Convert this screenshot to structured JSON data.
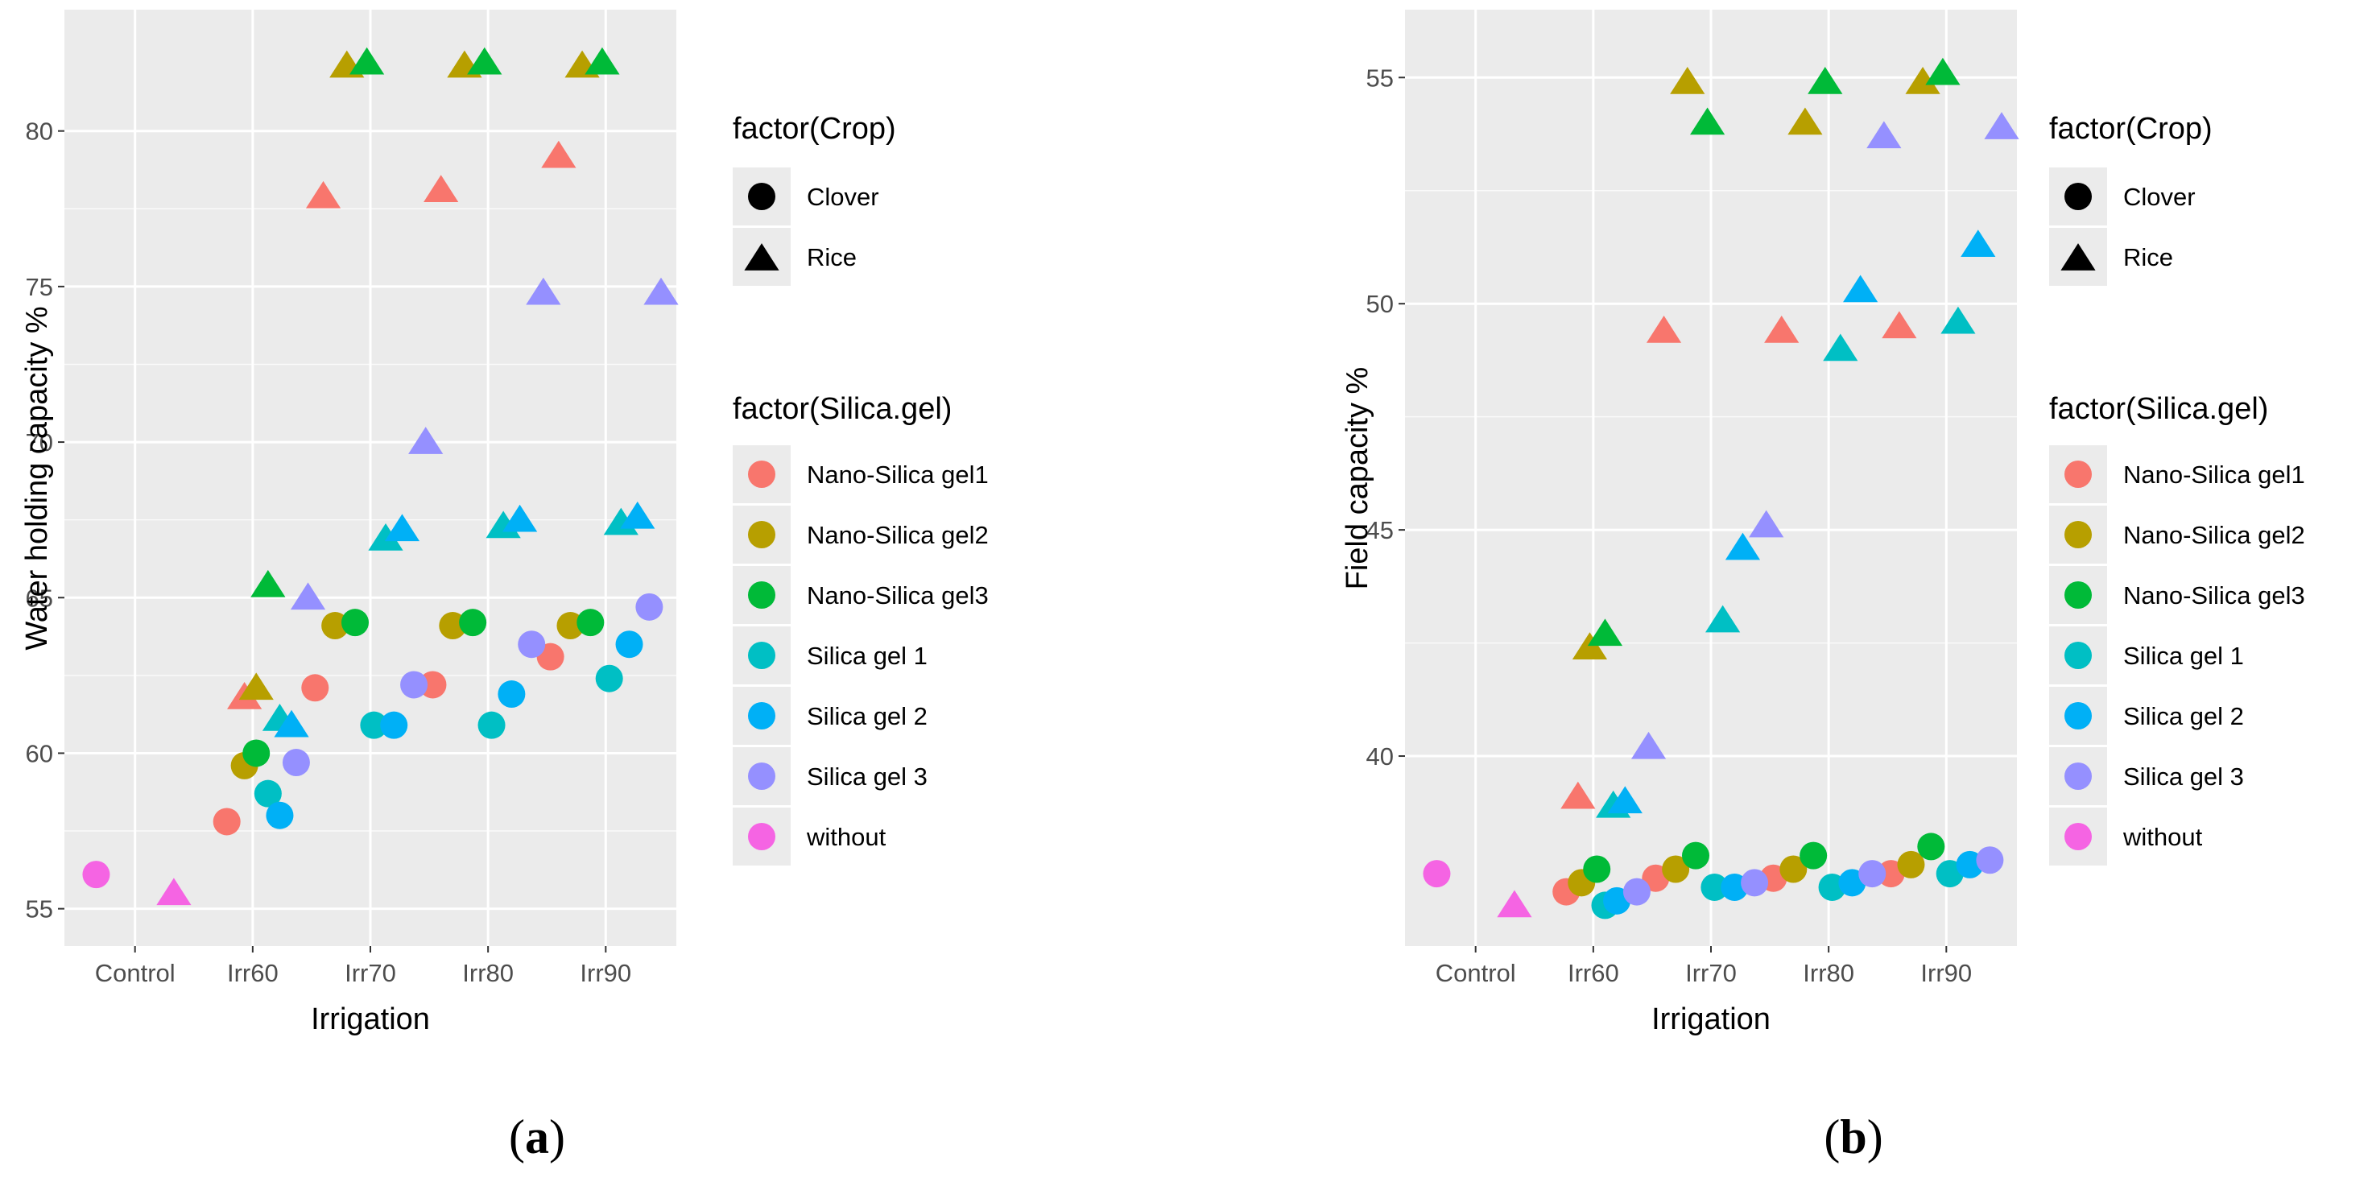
{
  "chart_data": [
    {
      "id": "a",
      "type": "scatter",
      "caption_pre": "(",
      "caption_letter": "a",
      "caption_post": ")",
      "xlabel": "Irrigation",
      "ylabel": "Water holding capacity %",
      "x_ticks": [
        "Control",
        "Irr60",
        "Irr70",
        "Irr80",
        "Irr90"
      ],
      "x_range": [
        0.4,
        5.6
      ],
      "ylim": [
        53.8,
        83.9
      ],
      "y_ticks": [
        55,
        60,
        65,
        70,
        75,
        80
      ],
      "shape_legend_title": "factor(Crop)",
      "shapes": [
        {
          "name": "Clover",
          "shape": "circle"
        },
        {
          "name": "Rice",
          "shape": "triangle"
        }
      ],
      "color_legend_title": "factor(Silica.gel)",
      "series": [
        {
          "name": "Nano-Silica gel1",
          "color": "#F8766D",
          "points": [
            {
              "x": 1.78,
              "y": 57.8,
              "crop": "Clover"
            },
            {
              "x": 1.93,
              "y": 61.8,
              "crop": "Rice"
            },
            {
              "x": 2.53,
              "y": 62.1,
              "crop": "Clover"
            },
            {
              "x": 2.6,
              "y": 77.9,
              "crop": "Rice"
            },
            {
              "x": 3.53,
              "y": 62.2,
              "crop": "Clover"
            },
            {
              "x": 3.6,
              "y": 78.1,
              "crop": "Rice"
            },
            {
              "x": 4.53,
              "y": 63.1,
              "crop": "Clover"
            },
            {
              "x": 4.6,
              "y": 79.2,
              "crop": "Rice"
            }
          ]
        },
        {
          "name": "Nano-Silica gel2",
          "color": "#B79F00",
          "points": [
            {
              "x": 1.93,
              "y": 59.6,
              "crop": "Clover"
            },
            {
              "x": 2.03,
              "y": 62.1,
              "crop": "Rice"
            },
            {
              "x": 2.7,
              "y": 64.1,
              "crop": "Clover"
            },
            {
              "x": 2.8,
              "y": 82.1,
              "crop": "Rice"
            },
            {
              "x": 3.7,
              "y": 64.1,
              "crop": "Clover"
            },
            {
              "x": 3.8,
              "y": 82.1,
              "crop": "Rice"
            },
            {
              "x": 4.7,
              "y": 64.1,
              "crop": "Clover"
            },
            {
              "x": 4.8,
              "y": 82.1,
              "crop": "Rice"
            }
          ]
        },
        {
          "name": "Nano-Silica gel3",
          "color": "#00BA38",
          "points": [
            {
              "x": 2.03,
              "y": 60.0,
              "crop": "Clover"
            },
            {
              "x": 2.13,
              "y": 65.4,
              "crop": "Rice"
            },
            {
              "x": 2.87,
              "y": 64.2,
              "crop": "Clover"
            },
            {
              "x": 2.97,
              "y": 82.2,
              "crop": "Rice"
            },
            {
              "x": 3.87,
              "y": 64.2,
              "crop": "Clover"
            },
            {
              "x": 3.97,
              "y": 82.2,
              "crop": "Rice"
            },
            {
              "x": 4.87,
              "y": 64.2,
              "crop": "Clover"
            },
            {
              "x": 4.97,
              "y": 82.2,
              "crop": "Rice"
            }
          ]
        },
        {
          "name": "Silica gel 1",
          "color": "#00BFC4",
          "points": [
            {
              "x": 2.13,
              "y": 58.7,
              "crop": "Clover"
            },
            {
              "x": 2.23,
              "y": 61.1,
              "crop": "Rice"
            },
            {
              "x": 3.03,
              "y": 60.9,
              "crop": "Clover"
            },
            {
              "x": 3.13,
              "y": 66.9,
              "crop": "Rice"
            },
            {
              "x": 4.03,
              "y": 60.9,
              "crop": "Clover"
            },
            {
              "x": 4.13,
              "y": 67.3,
              "crop": "Rice"
            },
            {
              "x": 5.03,
              "y": 62.4,
              "crop": "Clover"
            },
            {
              "x": 5.13,
              "y": 67.4,
              "crop": "Rice"
            }
          ]
        },
        {
          "name": "Silica gel 2",
          "color": "#00B0F6",
          "points": [
            {
              "x": 2.23,
              "y": 58.0,
              "crop": "Clover"
            },
            {
              "x": 2.33,
              "y": 60.9,
              "crop": "Rice"
            },
            {
              "x": 3.2,
              "y": 60.9,
              "crop": "Clover"
            },
            {
              "x": 3.27,
              "y": 67.2,
              "crop": "Rice"
            },
            {
              "x": 4.2,
              "y": 61.9,
              "crop": "Clover"
            },
            {
              "x": 4.27,
              "y": 67.5,
              "crop": "Rice"
            },
            {
              "x": 5.2,
              "y": 63.5,
              "crop": "Clover"
            },
            {
              "x": 5.27,
              "y": 67.6,
              "crop": "Rice"
            }
          ]
        },
        {
          "name": "Silica gel 3",
          "color": "#9590FF",
          "points": [
            {
              "x": 2.37,
              "y": 59.7,
              "crop": "Clover"
            },
            {
              "x": 2.47,
              "y": 65.0,
              "crop": "Rice"
            },
            {
              "x": 3.37,
              "y": 62.2,
              "crop": "Clover"
            },
            {
              "x": 3.47,
              "y": 70.0,
              "crop": "Rice"
            },
            {
              "x": 4.37,
              "y": 63.5,
              "crop": "Clover"
            },
            {
              "x": 4.47,
              "y": 74.8,
              "crop": "Rice"
            },
            {
              "x": 5.37,
              "y": 64.7,
              "crop": "Clover"
            },
            {
              "x": 5.47,
              "y": 74.8,
              "crop": "Rice"
            }
          ]
        },
        {
          "name": "without",
          "color": "#F564E3",
          "points": [
            {
              "x": 0.67,
              "y": 56.1,
              "crop": "Clover"
            },
            {
              "x": 1.33,
              "y": 55.5,
              "crop": "Rice"
            }
          ]
        }
      ]
    },
    {
      "id": "b",
      "type": "scatter",
      "caption_pre": "(",
      "caption_letter": "b",
      "caption_post": ")",
      "xlabel": "Irrigation",
      "ylabel": "Field capacity %",
      "x_ticks": [
        "Control",
        "Irr60",
        "Irr70",
        "Irr80",
        "Irr90"
      ],
      "x_range": [
        0.4,
        5.6
      ],
      "ylim": [
        35.8,
        56.5
      ],
      "y_ticks": [
        40,
        45,
        50,
        55
      ],
      "shape_legend_title": "factor(Crop)",
      "shapes": [
        {
          "name": "Clover",
          "shape": "circle"
        },
        {
          "name": "Rice",
          "shape": "triangle"
        }
      ],
      "color_legend_title": "factor(Silica.gel)",
      "series": [
        {
          "name": "Nano-Silica gel1",
          "color": "#F8766D",
          "points": [
            {
              "x": 1.77,
              "y": 37.0,
              "crop": "Clover"
            },
            {
              "x": 1.87,
              "y": 39.1,
              "crop": "Rice"
            },
            {
              "x": 2.53,
              "y": 37.3,
              "crop": "Clover"
            },
            {
              "x": 2.6,
              "y": 49.4,
              "crop": "Rice"
            },
            {
              "x": 3.53,
              "y": 37.3,
              "crop": "Clover"
            },
            {
              "x": 3.6,
              "y": 49.4,
              "crop": "Rice"
            },
            {
              "x": 4.53,
              "y": 37.4,
              "crop": "Clover"
            },
            {
              "x": 4.6,
              "y": 49.5,
              "crop": "Rice"
            }
          ]
        },
        {
          "name": "Nano-Silica gel2",
          "color": "#B79F00",
          "points": [
            {
              "x": 1.9,
              "y": 37.2,
              "crop": "Clover"
            },
            {
              "x": 1.97,
              "y": 42.4,
              "crop": "Rice"
            },
            {
              "x": 2.7,
              "y": 37.5,
              "crop": "Clover"
            },
            {
              "x": 2.8,
              "y": 54.9,
              "crop": "Rice"
            },
            {
              "x": 3.7,
              "y": 37.5,
              "crop": "Clover"
            },
            {
              "x": 3.8,
              "y": 54.0,
              "crop": "Rice"
            },
            {
              "x": 4.7,
              "y": 37.6,
              "crop": "Clover"
            },
            {
              "x": 4.8,
              "y": 54.9,
              "crop": "Rice"
            }
          ]
        },
        {
          "name": "Nano-Silica gel3",
          "color": "#00BA38",
          "points": [
            {
              "x": 2.03,
              "y": 37.5,
              "crop": "Clover"
            },
            {
              "x": 2.1,
              "y": 42.7,
              "crop": "Rice"
            },
            {
              "x": 2.87,
              "y": 37.8,
              "crop": "Clover"
            },
            {
              "x": 2.97,
              "y": 54.0,
              "crop": "Rice"
            },
            {
              "x": 3.87,
              "y": 37.8,
              "crop": "Clover"
            },
            {
              "x": 3.97,
              "y": 54.9,
              "crop": "Rice"
            },
            {
              "x": 4.87,
              "y": 38.0,
              "crop": "Clover"
            },
            {
              "x": 4.97,
              "y": 55.1,
              "crop": "Rice"
            }
          ]
        },
        {
          "name": "Silica gel 1",
          "color": "#00BFC4",
          "points": [
            {
              "x": 2.1,
              "y": 36.7,
              "crop": "Clover"
            },
            {
              "x": 2.17,
              "y": 38.9,
              "crop": "Rice"
            },
            {
              "x": 3.03,
              "y": 37.1,
              "crop": "Clover"
            },
            {
              "x": 3.1,
              "y": 43.0,
              "crop": "Rice"
            },
            {
              "x": 4.03,
              "y": 37.1,
              "crop": "Clover"
            },
            {
              "x": 4.1,
              "y": 49.0,
              "crop": "Rice"
            },
            {
              "x": 5.03,
              "y": 37.4,
              "crop": "Clover"
            },
            {
              "x": 5.1,
              "y": 49.6,
              "crop": "Rice"
            }
          ]
        },
        {
          "name": "Silica gel 2",
          "color": "#00B0F6",
          "points": [
            {
              "x": 2.2,
              "y": 36.8,
              "crop": "Clover"
            },
            {
              "x": 2.27,
              "y": 39.0,
              "crop": "Rice"
            },
            {
              "x": 3.2,
              "y": 37.1,
              "crop": "Clover"
            },
            {
              "x": 3.27,
              "y": 44.6,
              "crop": "Rice"
            },
            {
              "x": 4.2,
              "y": 37.2,
              "crop": "Clover"
            },
            {
              "x": 4.27,
              "y": 50.3,
              "crop": "Rice"
            },
            {
              "x": 5.2,
              "y": 37.6,
              "crop": "Clover"
            },
            {
              "x": 5.27,
              "y": 51.3,
              "crop": "Rice"
            }
          ]
        },
        {
          "name": "Silica gel 3",
          "color": "#9590FF",
          "points": [
            {
              "x": 2.37,
              "y": 37.0,
              "crop": "Clover"
            },
            {
              "x": 2.47,
              "y": 40.2,
              "crop": "Rice"
            },
            {
              "x": 3.37,
              "y": 37.2,
              "crop": "Clover"
            },
            {
              "x": 3.47,
              "y": 45.1,
              "crop": "Rice"
            },
            {
              "x": 4.37,
              "y": 37.4,
              "crop": "Clover"
            },
            {
              "x": 4.47,
              "y": 53.7,
              "crop": "Rice"
            },
            {
              "x": 5.37,
              "y": 37.7,
              "crop": "Clover"
            },
            {
              "x": 5.47,
              "y": 53.9,
              "crop": "Rice"
            }
          ]
        },
        {
          "name": "without",
          "color": "#F564E3",
          "points": [
            {
              "x": 0.67,
              "y": 37.4,
              "crop": "Clover"
            },
            {
              "x": 1.33,
              "y": 36.7,
              "crop": "Rice"
            }
          ]
        }
      ]
    }
  ]
}
